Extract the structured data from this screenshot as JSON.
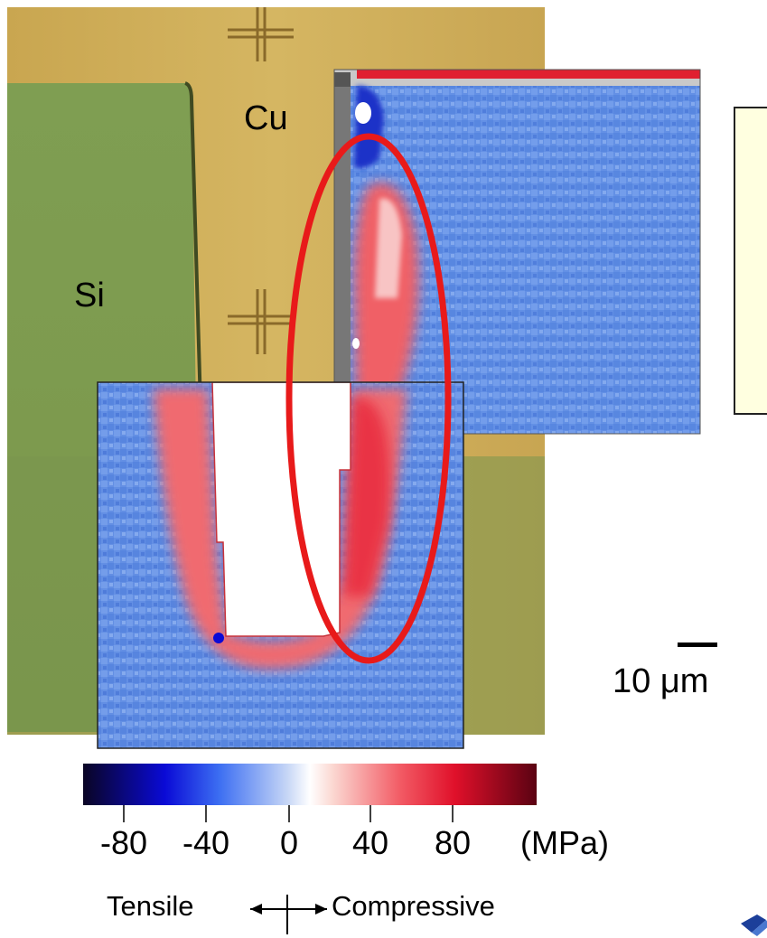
{
  "labels": {
    "copper": "Cu",
    "silicon": "Si"
  },
  "scale_bar": {
    "text": "10 μm"
  },
  "colorbar": {
    "ticks": [
      "-80",
      "-40",
      "0",
      "40",
      "80"
    ],
    "unit": "(MPa)",
    "tensile_label": "Tensile",
    "compressive_label": "Compressive",
    "stops": [
      {
        "offset": "0%",
        "color": "#0a0524"
      },
      {
        "offset": "18%",
        "color": "#0a0ad6"
      },
      {
        "offset": "30%",
        "color": "#3c6ef2"
      },
      {
        "offset": "45%",
        "color": "#c6d6f6"
      },
      {
        "offset": "50%",
        "color": "#ffffff"
      },
      {
        "offset": "55%",
        "color": "#fbd8d2"
      },
      {
        "offset": "70%",
        "color": "#f25a64"
      },
      {
        "offset": "82%",
        "color": "#e0102a"
      },
      {
        "offset": "100%",
        "color": "#5a0212"
      }
    ]
  },
  "colors": {
    "cu_pad": "#cfae57",
    "si_region": "#7e9c4f",
    "stress_blue": "#5f8ee6",
    "stress_red": "#ef5a5e",
    "highlight_ellipse": "#e81a1a",
    "note_box": "#ffffe0"
  },
  "icons": {
    "logo": "institution-logo"
  }
}
